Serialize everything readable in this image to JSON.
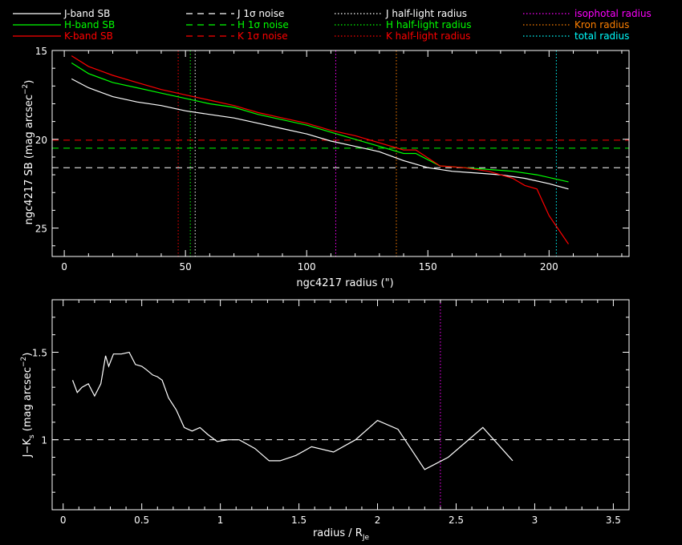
{
  "colors": {
    "J": "#ffffff",
    "H": "#00ff00",
    "K": "#ff0000",
    "isophotal": "#ff00ff",
    "kron": "#ff8000",
    "total": "#00ffff",
    "background": "#000000",
    "axes": "#ffffff"
  },
  "legend": [
    {
      "label": "J-band SB",
      "color": "#ffffff",
      "style": "solid"
    },
    {
      "label": "H-band SB",
      "color": "#00ff00",
      "style": "solid"
    },
    {
      "label": "K-band SB",
      "color": "#ff0000",
      "style": "solid"
    },
    {
      "label": "J 1σ noise",
      "color": "#ffffff",
      "style": "dashed"
    },
    {
      "label": "H 1σ noise",
      "color": "#00ff00",
      "style": "dashed"
    },
    {
      "label": "K 1σ noise",
      "color": "#ff0000",
      "style": "dashed"
    },
    {
      "label": "J half-light radius",
      "color": "#ffffff",
      "style": "dotted"
    },
    {
      "label": "H half-light radius",
      "color": "#00ff00",
      "style": "dotted"
    },
    {
      "label": "K half-light radius",
      "color": "#ff0000",
      "style": "dotted"
    },
    {
      "label": "isophotal radius",
      "color": "#ff00ff",
      "style": "dotted"
    },
    {
      "label": "Kron radius",
      "color": "#ff8000",
      "style": "dotted"
    },
    {
      "label": "total radius",
      "color": "#00ffff",
      "style": "dotted"
    }
  ],
  "chart_data": [
    {
      "type": "line",
      "xlabel": "ngc4217 radius (\")",
      "ylabel": "ngc4217 SB (mag arcsec^-2)",
      "xlim": [
        -5,
        233
      ],
      "ylim": [
        26.6,
        15
      ],
      "y_inverted": true,
      "xticks": [
        0,
        50,
        100,
        150,
        200
      ],
      "yticks": [
        15,
        20,
        25
      ],
      "series": [
        {
          "name": "J-band SB",
          "color": "#ffffff",
          "x": [
            3,
            10,
            20,
            30,
            40,
            50,
            60,
            70,
            80,
            90,
            100,
            110,
            120,
            130,
            140,
            150,
            160,
            170,
            180,
            190,
            200,
            208
          ],
          "y": [
            16.6,
            17.1,
            17.6,
            17.9,
            18.1,
            18.4,
            18.6,
            18.8,
            19.1,
            19.4,
            19.7,
            20.1,
            20.4,
            20.7,
            21.2,
            21.6,
            21.8,
            21.9,
            22.0,
            22.2,
            22.5,
            22.8
          ]
        },
        {
          "name": "H-band SB",
          "color": "#00ff00",
          "x": [
            3,
            10,
            20,
            30,
            40,
            50,
            60,
            70,
            80,
            90,
            100,
            110,
            120,
            130,
            140,
            145,
            155,
            165,
            175,
            185,
            195,
            208
          ],
          "y": [
            15.7,
            16.3,
            16.8,
            17.1,
            17.4,
            17.7,
            18.0,
            18.2,
            18.6,
            18.9,
            19.2,
            19.6,
            20.0,
            20.4,
            20.8,
            20.8,
            21.5,
            21.6,
            21.7,
            21.8,
            22.0,
            22.4
          ]
        },
        {
          "name": "K-band SB",
          "color": "#ff0000",
          "x": [
            3,
            10,
            20,
            30,
            40,
            50,
            60,
            70,
            80,
            90,
            100,
            110,
            120,
            130,
            140,
            145,
            155,
            165,
            175,
            185,
            190,
            195,
            200,
            208
          ],
          "y": [
            15.3,
            15.9,
            16.4,
            16.8,
            17.2,
            17.5,
            17.8,
            18.1,
            18.5,
            18.8,
            19.1,
            19.5,
            19.8,
            20.2,
            20.6,
            20.6,
            21.5,
            21.6,
            21.8,
            22.2,
            22.6,
            22.8,
            24.3,
            25.9
          ]
        }
      ],
      "noise_levels": [
        {
          "name": "J 1σ noise",
          "color": "#ffffff",
          "y": 21.6
        },
        {
          "name": "H 1σ noise",
          "color": "#00ff00",
          "y": 20.5
        },
        {
          "name": "K 1σ noise",
          "color": "#ff0000",
          "y": 20.05
        }
      ],
      "radii": [
        {
          "name": "J half-light radius",
          "color": "#ffffff",
          "x": 54
        },
        {
          "name": "H half-light radius",
          "color": "#00ff00",
          "x": 52
        },
        {
          "name": "K half-light radius",
          "color": "#ff0000",
          "x": 47
        },
        {
          "name": "isophotal radius",
          "color": "#ff00ff",
          "x": 112
        },
        {
          "name": "Kron radius",
          "color": "#ff8000",
          "x": 137
        },
        {
          "name": "total radius",
          "color": "#00ffff",
          "x": 203
        }
      ]
    },
    {
      "type": "line",
      "xlabel": "radius / R_Je",
      "ylabel": "J−K_s (mag arcsec^-2)",
      "xlim": [
        -0.07,
        3.6
      ],
      "ylim": [
        0.6,
        1.8
      ],
      "xticks": [
        0,
        0.5,
        1,
        1.5,
        2,
        2.5,
        3,
        3.5
      ],
      "yticks": [
        1,
        1.5
      ],
      "reference_line": {
        "y": 1.0,
        "color": "#ffffff",
        "style": "dashed"
      },
      "radius_marker": {
        "x": 2.4,
        "color": "#ff00ff"
      },
      "series": [
        {
          "name": "J−K_s",
          "color": "#ffffff",
          "x": [
            0.06,
            0.09,
            0.12,
            0.16,
            0.2,
            0.24,
            0.27,
            0.29,
            0.32,
            0.37,
            0.42,
            0.46,
            0.5,
            0.53,
            0.57,
            0.6,
            0.63,
            0.67,
            0.72,
            0.77,
            0.82,
            0.87,
            0.92,
            0.98,
            1.05,
            1.12,
            1.22,
            1.31,
            1.38,
            1.48,
            1.58,
            1.72,
            1.86,
            2.0,
            2.13,
            2.3,
            2.45,
            2.67,
            2.86
          ],
          "y": [
            1.34,
            1.27,
            1.3,
            1.32,
            1.25,
            1.32,
            1.48,
            1.42,
            1.49,
            1.49,
            1.5,
            1.43,
            1.42,
            1.4,
            1.37,
            1.36,
            1.34,
            1.24,
            1.17,
            1.07,
            1.05,
            1.07,
            1.03,
            0.99,
            1.0,
            1.0,
            0.95,
            0.88,
            0.88,
            0.91,
            0.96,
            0.93,
            1.0,
            1.11,
            1.06,
            0.83,
            0.9,
            1.07,
            0.88
          ]
        }
      ]
    }
  ],
  "panel1": {
    "xlabel": "ngc4217 radius (\")",
    "ylabel_main": "ngc4217 SB (mag arcsec",
    "ylabel_sup": "−2",
    "ylabel_close": ")",
    "xtick_labels": [
      "0",
      "50",
      "100",
      "150",
      "200"
    ],
    "ytick_labels": [
      "15",
      "20",
      "25"
    ]
  },
  "panel2": {
    "xlabel_main": "radius / R",
    "xlabel_sub": "Je",
    "ylabel_a": "J−K",
    "ylabel_sub": "s",
    "ylabel_b": " (mag arcsec",
    "ylabel_sup": "−2",
    "ylabel_close": ")",
    "xtick_labels": [
      "0",
      "0.5",
      "1",
      "1.5",
      "2",
      "2.5",
      "3",
      "3.5"
    ],
    "ytick_labels": [
      "1",
      "1.5"
    ]
  }
}
